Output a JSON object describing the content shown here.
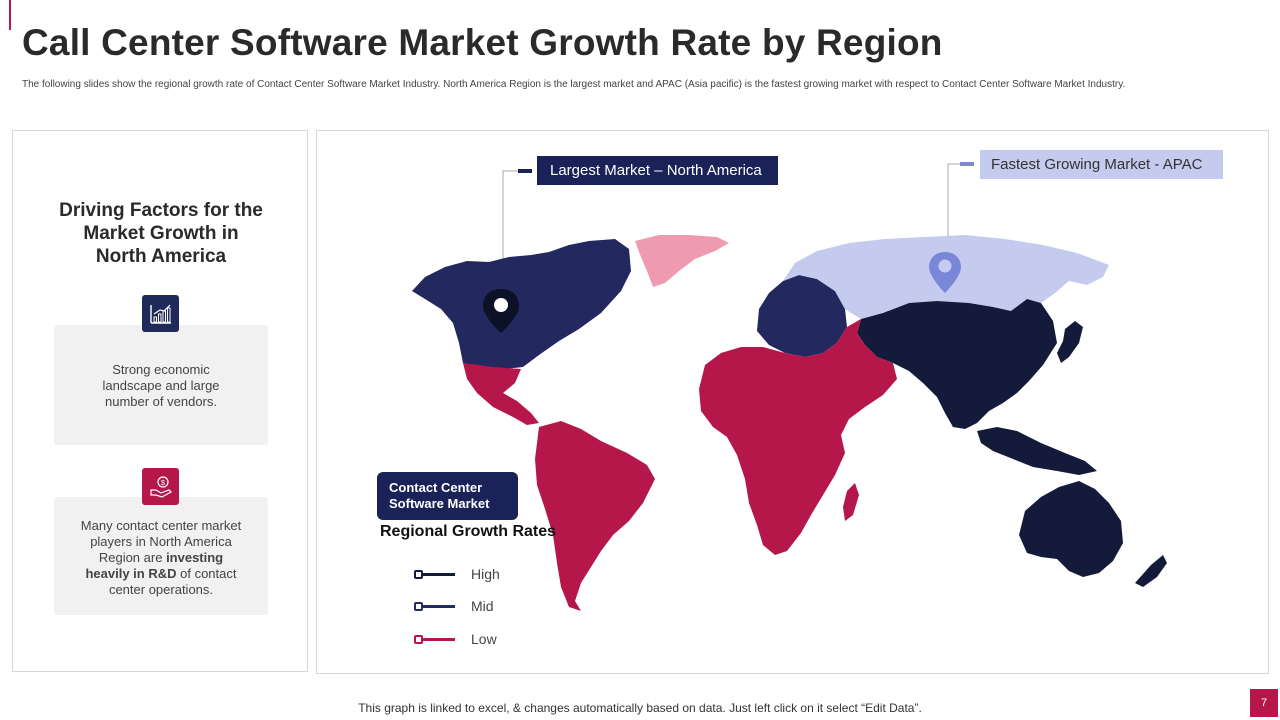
{
  "title": "Call Center Software Market Growth Rate by Region",
  "subtitle": "The following slides show the regional growth rate of Contact Center Software Market Industry. North America Region is the largest market and APAC (Asia pacific) is the fastest growing market with respect to Contact Center Software Market Industry.",
  "left_panel": {
    "title_lines": [
      "Driving Factors for the",
      "Market Growth in",
      "North America"
    ],
    "factors": [
      {
        "icon": "growth-chart-icon",
        "text_lines": [
          "Strong economic",
          "landscape and large",
          "number of vendors."
        ]
      },
      {
        "icon": "money-hand-icon",
        "pre_lines": [
          "Many contact center market",
          "players in North America"
        ],
        "pre_inline": "Region are ",
        "bold_1": "investing",
        "bold_2": "heavily in R&D",
        "post_inline": " of contact",
        "post_line": "center operations."
      }
    ]
  },
  "map": {
    "callouts": {
      "largest": "Largest Market – North America",
      "fastest": "Fastest Growing Market - APAC"
    },
    "legend_box_lines": [
      "Contact Center",
      "Software Market"
    ],
    "legend_title": "Regional Growth Rates",
    "legend": [
      {
        "label": "High",
        "color": "#141a3a"
      },
      {
        "label": "Mid",
        "color": "#222b63"
      },
      {
        "label": "Low",
        "color": "#b5174a"
      }
    ],
    "colors": {
      "north_america": "#23295f",
      "greenland": "#ef9ab1",
      "europe": "#23295f",
      "russia": "#c5cbee",
      "asia_pacific": "#141a3a",
      "latin_america": "#b5174a",
      "africa_middle_east": "#b5174a"
    }
  },
  "footer": "This graph is linked to excel,  & changes automatically based on data. Just left click on it select “Edit Data”.",
  "page_number": "7"
}
